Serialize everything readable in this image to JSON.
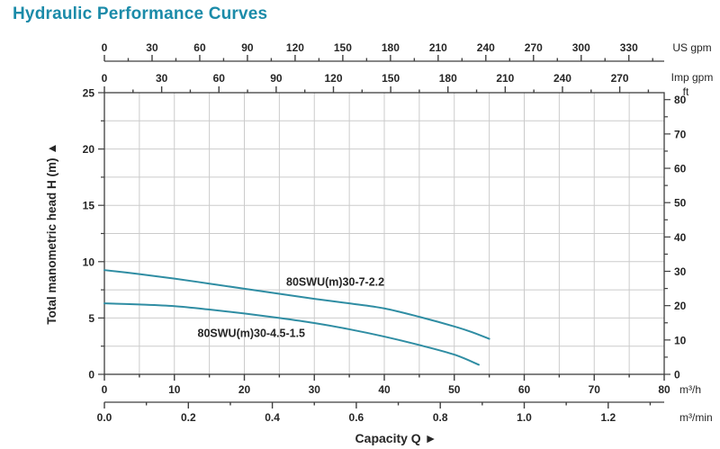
{
  "page": {
    "title": "Hydraulic Performance Curves"
  },
  "colors": {
    "title": "#1b8ba9",
    "curve": "#2f8da3",
    "grid": "#cbcbcb",
    "axis": "#3f3f3f",
    "text": "#262626"
  },
  "chart_data": {
    "type": "line",
    "title": "Hydraulic Performance Curves",
    "xlabel": "Capacity Q  ►",
    "ylabel": "Total manometric head H (m)  ▲",
    "grid": {
      "x_step": 5,
      "y_step": 2.5,
      "visible": true
    },
    "x_primary": {
      "unit": "m³/h",
      "min": 0,
      "max": 80,
      "major_step": 10,
      "minor_step": 5,
      "decimals": 0
    },
    "x_secondary": [
      {
        "unit": "US gpm",
        "per_m3h": 4.40287,
        "major_step": 30,
        "minor_step": 15,
        "max_label": 330,
        "decimals": 0
      },
      {
        "unit": "Imp gpm",
        "per_m3h": 3.66615,
        "major_step": 30,
        "minor_step": 15,
        "max_label": 270,
        "decimals": 0
      },
      {
        "unit": "m³/min",
        "per_m3h": 0.0166667,
        "major_step": 0.2,
        "minor_step": 0.1,
        "max_label": 1.2,
        "decimals": 1
      }
    ],
    "y_primary": {
      "unit": "m",
      "min": 0,
      "max": 25,
      "major_step": 5,
      "minor_step": 2.5,
      "decimals": 0
    },
    "y_secondary": {
      "unit": "ft",
      "per_m": 3.28084,
      "major_step": 10,
      "minor_step": 5,
      "max_label": 80,
      "decimals": 0
    },
    "series": [
      {
        "name": "80SWU(m)30-7-2.2",
        "x": [
          0,
          5,
          10,
          15,
          20,
          25,
          30,
          35,
          40,
          45,
          50,
          52.5,
          55
        ],
        "y": [
          9.25,
          8.9,
          8.5,
          8.05,
          7.6,
          7.15,
          6.7,
          6.3,
          5.85,
          5.1,
          4.25,
          3.75,
          3.15
        ],
        "label_at": {
          "x": 33,
          "y": 7.85
        }
      },
      {
        "name": "80SWU(m)30-4.5-1.5",
        "x": [
          0,
          5,
          10,
          15,
          20,
          25,
          30,
          35,
          40,
          45,
          50,
          53.5
        ],
        "y": [
          6.3,
          6.2,
          6.05,
          5.75,
          5.4,
          5.0,
          4.55,
          4.0,
          3.35,
          2.6,
          1.75,
          0.85
        ],
        "label_at": {
          "x": 21,
          "y": 3.3
        }
      }
    ]
  }
}
